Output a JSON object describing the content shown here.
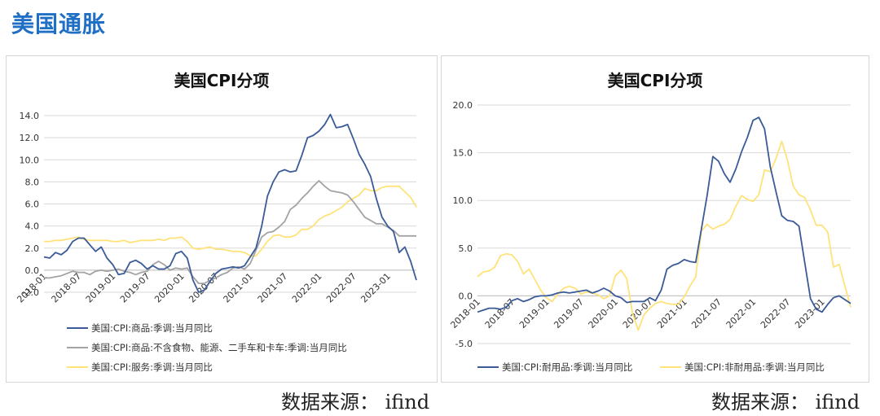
{
  "page": {
    "title": "美国通胀"
  },
  "sources": {
    "left": "数据来源： ifind",
    "right": "数据来源： ifind"
  },
  "chart_data": [
    {
      "type": "line",
      "title": "美国CPI分项",
      "x": [
        "2018-01",
        "2018-02",
        "2018-03",
        "2018-04",
        "2018-05",
        "2018-06",
        "2018-07",
        "2018-08",
        "2018-09",
        "2018-10",
        "2018-11",
        "2018-12",
        "2019-01",
        "2019-02",
        "2019-03",
        "2019-04",
        "2019-05",
        "2019-06",
        "2019-07",
        "2019-08",
        "2019-09",
        "2019-10",
        "2019-11",
        "2019-12",
        "2020-01",
        "2020-02",
        "2020-03",
        "2020-04",
        "2020-05",
        "2020-06",
        "2020-07",
        "2020-08",
        "2020-09",
        "2020-10",
        "2020-11",
        "2020-12",
        "2021-01",
        "2021-02",
        "2021-03",
        "2021-04",
        "2021-05",
        "2021-06",
        "2021-07",
        "2021-08",
        "2021-09",
        "2021-10",
        "2021-11",
        "2021-12",
        "2022-01",
        "2022-02",
        "2022-03",
        "2022-04",
        "2022-05",
        "2022-06",
        "2022-07",
        "2022-08",
        "2022-09",
        "2022-10",
        "2022-11",
        "2022-12",
        "2023-01",
        "2023-02",
        "2023-03",
        "2023-04",
        "2023-05",
        "2023-06"
      ],
      "x_tick_labels": [
        "2018-01",
        "2018-07",
        "2019-01",
        "2019-07",
        "2020-01",
        "2020-07",
        "2021-01",
        "2021-07",
        "2022-01",
        "2022-07",
        "2023-01"
      ],
      "ylim": [
        -2.0,
        14.0
      ],
      "y_ticks": [
        "-2.0",
        "0.0",
        "2.0",
        "4.0",
        "6.0",
        "8.0",
        "10.0",
        "12.0",
        "14.0"
      ],
      "grid": true,
      "legend_position": "bottom",
      "series": [
        {
          "name": "美国:CPI:商品:季调:当月同比",
          "color": "#3a5a98",
          "values": [
            1.2,
            1.1,
            1.6,
            1.4,
            1.8,
            2.6,
            2.9,
            2.9,
            2.3,
            1.7,
            2.1,
            1.1,
            0.5,
            -0.4,
            -0.3,
            0.7,
            0.9,
            0.6,
            0.1,
            0.4,
            0.1,
            0.1,
            0.4,
            1.5,
            1.7,
            1.1,
            -0.9,
            -2.0,
            -1.8,
            -1.0,
            -0.3,
            0.1,
            0.2,
            0.3,
            0.2,
            0.4,
            1.2,
            2.0,
            4.0,
            6.7,
            8.0,
            8.9,
            9.1,
            8.9,
            9.0,
            10.4,
            12.0,
            12.2,
            12.6,
            13.2,
            14.1,
            12.9,
            13.0,
            13.2,
            11.9,
            10.5,
            9.6,
            8.5,
            6.5,
            4.8,
            4.0,
            3.5,
            1.6,
            2.1,
            0.8,
            -0.9
          ]
        },
        {
          "name": "美国:CPI:商品:不含食物、能源、二手车和卡车:季调:当月同比",
          "color": "#a3a3a3",
          "values": [
            -0.7,
            -0.7,
            -0.6,
            -0.5,
            -0.3,
            -0.1,
            -0.2,
            -0.2,
            -0.4,
            -0.1,
            0.0,
            -0.1,
            0.0,
            0.1,
            -0.1,
            -0.2,
            -0.4,
            -0.2,
            -0.1,
            0.5,
            0.8,
            0.5,
            0.0,
            0.2,
            0.1,
            0.2,
            -0.6,
            -1.2,
            -1.2,
            -0.9,
            -0.7,
            -0.4,
            -0.2,
            0.2,
            0.3,
            0.1,
            0.6,
            1.8,
            3.0,
            3.4,
            3.5,
            3.9,
            4.4,
            5.5,
            5.9,
            6.5,
            7.0,
            7.6,
            8.1,
            7.6,
            7.2,
            7.1,
            7.0,
            6.8,
            6.2,
            5.5,
            4.8,
            4.5,
            4.2,
            4.2,
            3.9,
            3.6,
            3.1,
            3.1,
            3.1,
            3.1
          ]
        },
        {
          "name": "美国:CPI:服务:季调:当月同比",
          "color": "#ffe27a",
          "values": [
            2.6,
            2.6,
            2.7,
            2.7,
            2.8,
            2.9,
            3.0,
            2.8,
            2.7,
            2.7,
            2.7,
            2.7,
            2.6,
            2.6,
            2.7,
            2.5,
            2.6,
            2.7,
            2.7,
            2.7,
            2.8,
            2.7,
            2.9,
            2.9,
            3.0,
            2.6,
            2.0,
            1.9,
            2.0,
            2.1,
            1.9,
            1.9,
            1.8,
            1.7,
            1.7,
            1.6,
            1.3,
            1.3,
            1.9,
            2.6,
            3.1,
            3.2,
            3.0,
            3.0,
            3.2,
            3.7,
            3.7,
            4.0,
            4.6,
            4.9,
            5.1,
            5.4,
            5.7,
            6.2,
            6.5,
            6.8,
            7.4,
            7.2,
            7.2,
            7.5,
            7.6,
            7.6,
            7.6,
            7.1,
            6.6,
            5.7
          ]
        }
      ]
    },
    {
      "type": "line",
      "title": "美国CPI分项",
      "x": [
        "2018-01",
        "2018-02",
        "2018-03",
        "2018-04",
        "2018-05",
        "2018-06",
        "2018-07",
        "2018-08",
        "2018-09",
        "2018-10",
        "2018-11",
        "2018-12",
        "2019-01",
        "2019-02",
        "2019-03",
        "2019-04",
        "2019-05",
        "2019-06",
        "2019-07",
        "2019-08",
        "2019-09",
        "2019-10",
        "2019-11",
        "2019-12",
        "2020-01",
        "2020-02",
        "2020-03",
        "2020-04",
        "2020-05",
        "2020-06",
        "2020-07",
        "2020-08",
        "2020-09",
        "2020-10",
        "2020-11",
        "2020-12",
        "2021-01",
        "2021-02",
        "2021-03",
        "2021-04",
        "2021-05",
        "2021-06",
        "2021-07",
        "2021-08",
        "2021-09",
        "2021-10",
        "2021-11",
        "2021-12",
        "2022-01",
        "2022-02",
        "2022-03",
        "2022-04",
        "2022-05",
        "2022-06",
        "2022-07",
        "2022-08",
        "2022-09",
        "2022-10",
        "2022-11",
        "2022-12",
        "2023-01",
        "2023-02",
        "2023-03",
        "2023-04",
        "2023-05",
        "2023-06"
      ],
      "x_tick_labels": [
        "2018-01",
        "2018-07",
        "2019-01",
        "2019-07",
        "2020-01",
        "2020-07",
        "2021-01",
        "2021-07",
        "2022-01",
        "2022-07",
        "2023-01"
      ],
      "ylim": [
        -5.0,
        20.0
      ],
      "y_ticks": [
        "-5.0",
        "0.0",
        "5.0",
        "10.0",
        "15.0",
        "20.0"
      ],
      "grid": true,
      "legend_position": "bottom",
      "series": [
        {
          "name": "美国:CPI:耐用品:季调:当月同比",
          "color": "#3a5a98",
          "values": [
            -1.7,
            -1.5,
            -1.3,
            -1.3,
            -1.4,
            -1.2,
            -0.5,
            -0.3,
            -0.6,
            -0.4,
            -0.1,
            0.0,
            0.0,
            0.1,
            0.3,
            0.4,
            0.3,
            0.4,
            0.5,
            0.6,
            0.3,
            0.5,
            0.8,
            0.5,
            0.0,
            -0.2,
            -0.7,
            -0.6,
            -0.6,
            -0.6,
            -0.2,
            -0.5,
            0.6,
            2.8,
            3.2,
            3.4,
            3.8,
            3.6,
            3.5,
            7.0,
            10.5,
            14.6,
            14.1,
            12.8,
            11.9,
            13.3,
            15.1,
            16.6,
            18.4,
            18.7,
            17.5,
            13.5,
            10.9,
            8.4,
            7.9,
            7.8,
            7.3,
            3.5,
            -0.3,
            -1.4,
            -1.7,
            -0.9,
            -0.2,
            0.0,
            -0.4,
            -0.8
          ]
        },
        {
          "name": "美国:CPI:非耐用品:季调:当月同比",
          "color": "#ffe27a",
          "values": [
            2.0,
            2.5,
            2.6,
            3.0,
            4.2,
            4.4,
            4.3,
            3.6,
            2.3,
            2.8,
            1.7,
            0.6,
            -0.2,
            -0.6,
            0.2,
            0.8,
            1.0,
            0.8,
            0.2,
            0.4,
            0.3,
            0.1,
            -0.3,
            0.0,
            2.1,
            2.7,
            1.8,
            -1.8,
            -3.6,
            -2.0,
            -1.3,
            -0.8,
            -0.6,
            -0.8,
            -0.9,
            -0.9,
            -0.1,
            1.0,
            2.0,
            6.8,
            7.5,
            7.0,
            7.3,
            7.5,
            8.0,
            9.4,
            10.5,
            10.1,
            9.9,
            10.6,
            13.2,
            13.0,
            14.4,
            16.2,
            14.2,
            11.5,
            10.6,
            10.3,
            9.0,
            7.4,
            7.4,
            6.7,
            3.0,
            3.3,
            1.0,
            -1.2
          ]
        }
      ]
    }
  ]
}
